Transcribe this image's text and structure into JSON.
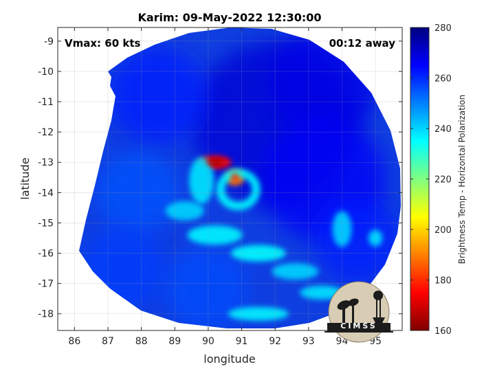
{
  "chart_data": {
    "type": "heatmap",
    "title": "Karim: 09-May-2022 12:30:00",
    "xlabel": "longitude",
    "ylabel": "latitude",
    "xlim": [
      85.5,
      95.8
    ],
    "ylim": [
      -18.55,
      -8.55
    ],
    "x_ticks": [
      86,
      87,
      88,
      89,
      90,
      91,
      92,
      93,
      94,
      95
    ],
    "y_ticks": [
      -9,
      -10,
      -11,
      -12,
      -13,
      -14,
      -15,
      -16,
      -17,
      -18
    ],
    "grid": true,
    "colorbar": {
      "label": "Brightness Temp - Horizontal Polarization",
      "range": [
        160,
        280
      ],
      "ticks": [
        160,
        180,
        200,
        220,
        240,
        260,
        280
      ],
      "colormap": [
        "#800000",
        "#ff0000",
        "#ff8000",
        "#ffff00",
        "#80ff80",
        "#00ffff",
        "#0080ff",
        "#0000ff",
        "#000080"
      ]
    },
    "annotations": {
      "left": "Vmax: 60 kts",
      "right": "00:12 away"
    },
    "storm_center": {
      "lon": 90.8,
      "lat": -13.8
    },
    "features": [
      {
        "name": "eye",
        "lon": 90.8,
        "lat": -13.5,
        "value": 190
      },
      {
        "name": "eyewall-northwest",
        "lon": 90.2,
        "lat": -13.0,
        "value": 175
      },
      {
        "name": "eyewall-ring",
        "lon": 90.9,
        "lat": -13.9,
        "value": 235
      },
      {
        "name": "inner-band",
        "lon": 89.8,
        "lat": -13.6,
        "value": 238
      },
      {
        "name": "band-1",
        "lon": 89.3,
        "lat": -14.6,
        "value": 240
      },
      {
        "name": "band-2",
        "lon": 90.2,
        "lat": -15.4,
        "value": 236
      },
      {
        "name": "band-3",
        "lon": 91.5,
        "lat": -16.0,
        "value": 235
      },
      {
        "name": "band-4",
        "lon": 92.6,
        "lat": -16.6,
        "value": 240
      },
      {
        "name": "band-5",
        "lon": 93.4,
        "lat": -17.3,
        "value": 238
      },
      {
        "name": "band-6",
        "lon": 91.5,
        "lat": -18.0,
        "value": 236
      },
      {
        "name": "band-7",
        "lon": 94.0,
        "lat": -15.2,
        "value": 240
      },
      {
        "name": "band-8",
        "lon": 95.0,
        "lat": -15.5,
        "value": 238
      }
    ]
  },
  "logo": {
    "name": "cimss-logo",
    "text": "CIMSS"
  }
}
